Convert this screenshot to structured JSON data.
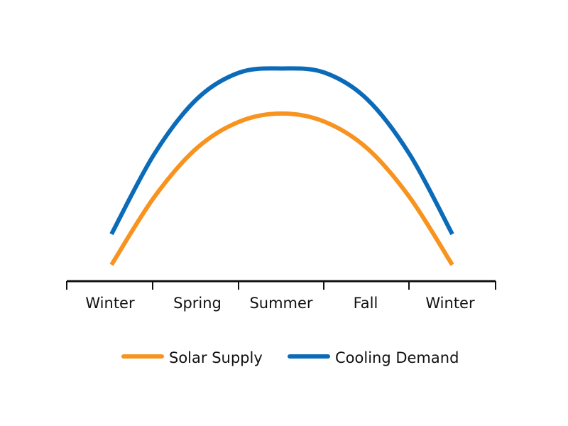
{
  "chart_data": {
    "type": "line",
    "title": "",
    "xlabel": "",
    "ylabel": "",
    "categories": [
      "Winter",
      "Spring",
      "Summer",
      "Fall",
      "Winter"
    ],
    "x": [
      0,
      0.5,
      1,
      1.5,
      2,
      2.5,
      3,
      3.5,
      4
    ],
    "ylim": [
      0,
      100
    ],
    "series": [
      {
        "name": "Solar Supply",
        "color": "#F7931E",
        "values": [
          8,
          41,
          65,
          78,
          82,
          78,
          65,
          41,
          8
        ]
      },
      {
        "name": "Cooling Demand",
        "color": "#0B6BB8",
        "values": [
          23,
          62,
          89,
          102,
          104,
          102,
          89,
          62,
          23
        ]
      }
    ],
    "legend": {
      "placement": "bottom",
      "items": [
        {
          "label": "Solar Supply",
          "color": "#F7931E"
        },
        {
          "label": "Cooling Demand",
          "color": "#0B6BB8"
        }
      ]
    },
    "grid": false
  }
}
